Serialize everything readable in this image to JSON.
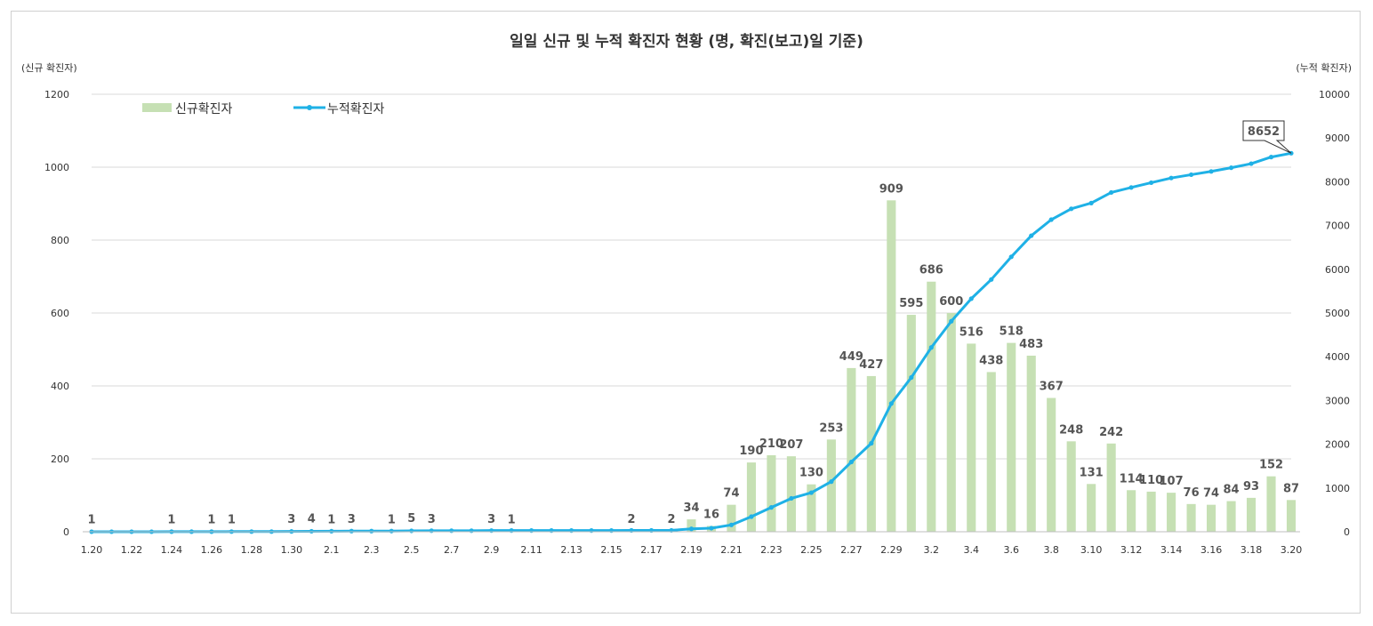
{
  "chart_data": {
    "type": "bar",
    "title": "일일 신규 및 누적 확진자 현황 (명, 확진(보고)일 기준)",
    "ylabel": "(신규 확진자)",
    "y2label": "(누적 확진자)",
    "ylim": [
      0,
      1200
    ],
    "y2lim": [
      0,
      10000
    ],
    "yticks": [
      0,
      200,
      400,
      600,
      800,
      1000,
      1200
    ],
    "y2ticks": [
      0,
      1000,
      2000,
      3000,
      4000,
      5000,
      6000,
      7000,
      8000,
      9000,
      10000
    ],
    "grid": true,
    "legend_placement": "top-left",
    "categories": [
      "1.20",
      "1.21",
      "1.22",
      "1.23",
      "1.24",
      "1.25",
      "1.26",
      "1.27",
      "1.28",
      "1.29",
      "1.30",
      "1.31",
      "2.1",
      "2.2",
      "2.3",
      "2.4",
      "2.5",
      "2.6",
      "2.7",
      "2.8",
      "2.9",
      "2.10",
      "2.11",
      "2.12",
      "2.13",
      "2.14",
      "2.15",
      "2.16",
      "2.17",
      "2.18",
      "2.19",
      "2.20",
      "2.21",
      "2.22",
      "2.23",
      "2.24",
      "2.25",
      "2.26",
      "2.27",
      "2.28",
      "2.29",
      "3.1",
      "3.2",
      "3.3",
      "3.4",
      "3.5",
      "3.6",
      "3.7",
      "3.8",
      "3.9",
      "3.10",
      "3.11",
      "3.12",
      "3.13",
      "3.14",
      "3.15",
      "3.16",
      "3.17",
      "3.18",
      "3.19",
      "3.20"
    ],
    "x_tick_labels": [
      "1.20",
      "",
      "1.22",
      "",
      "1.24",
      "",
      "1.26",
      "",
      "1.28",
      "",
      "1.30",
      "",
      "2.1",
      "",
      "2.3",
      "",
      "2.5",
      "",
      "2.7",
      "",
      "2.9",
      "",
      "2.11",
      "",
      "2.13",
      "",
      "2.15",
      "",
      "2.17",
      "",
      "2.19",
      "",
      "2.21",
      "",
      "2.23",
      "",
      "2.25",
      "",
      "2.27",
      "",
      "2.29",
      "",
      "3.2",
      "",
      "3.4",
      "",
      "3.6",
      "",
      "3.8",
      "",
      "3.10",
      "",
      "3.12",
      "",
      "3.14",
      "",
      "3.16",
      "",
      "3.18",
      "",
      "3.20"
    ],
    "series": [
      {
        "name": "신규확진자",
        "kind": "bar",
        "axis": "left",
        "color": "#c6e0b4",
        "values": [
          1,
          0,
          0,
          0,
          1,
          0,
          1,
          1,
          0,
          0,
          3,
          4,
          1,
          3,
          0,
          1,
          5,
          3,
          0,
          0,
          3,
          1,
          0,
          0,
          0,
          0,
          0,
          2,
          0,
          2,
          34,
          16,
          74,
          190,
          210,
          207,
          130,
          253,
          449,
          427,
          909,
          595,
          686,
          600,
          516,
          438,
          518,
          483,
          367,
          248,
          131,
          242,
          114,
          110,
          107,
          76,
          74,
          84,
          93,
          152,
          87
        ],
        "labels": [
          "1",
          "",
          "",
          "",
          "1",
          "",
          "1",
          "1",
          "",
          "",
          "3",
          "4",
          "1",
          "3",
          "",
          "1",
          "5",
          "3",
          "",
          "",
          "3",
          "1",
          "",
          "",
          "",
          "",
          "",
          "2",
          "",
          "2",
          "34",
          "16",
          "74",
          "190",
          "210",
          "207",
          "130",
          "253",
          "449",
          "427",
          "909",
          "595",
          "686",
          "600",
          "516",
          "438",
          "518",
          "483",
          "367",
          "248",
          "131",
          "242",
          "114",
          "110",
          "107",
          "76",
          "74",
          "84",
          "93",
          "152",
          "87"
        ]
      },
      {
        "name": "누적확진자",
        "kind": "line",
        "axis": "right",
        "color": "#1fb1e6",
        "values": [
          1,
          1,
          1,
          1,
          2,
          2,
          3,
          4,
          4,
          4,
          7,
          11,
          12,
          15,
          15,
          16,
          21,
          24,
          24,
          24,
          27,
          28,
          28,
          28,
          28,
          28,
          28,
          30,
          30,
          32,
          66,
          82,
          156,
          346,
          556,
          763,
          893,
          1146,
          1595,
          2022,
          2931,
          3526,
          4212,
          4812,
          5328,
          5766,
          6284,
          6767,
          7134,
          7382,
          7513,
          7755,
          7869,
          7979,
          8086,
          8162,
          8236,
          8320,
          8413,
          8565,
          8652
        ]
      }
    ],
    "highlight_color": "#ff0000",
    "annotation": {
      "text": "8652",
      "color": "#ff0000"
    }
  }
}
